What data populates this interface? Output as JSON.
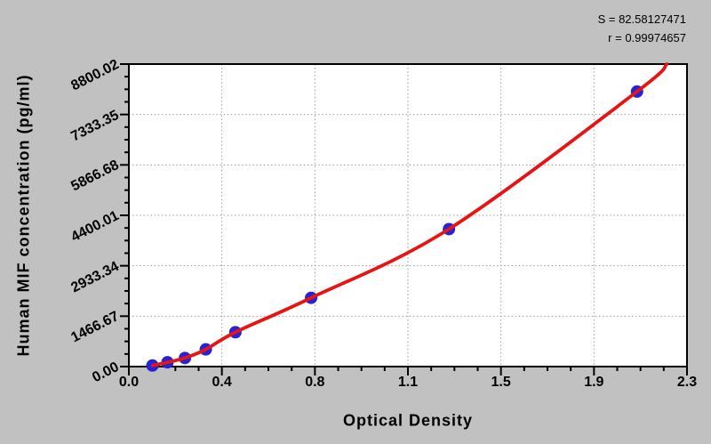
{
  "window": {
    "background_color": "#c1c1c1",
    "plot_background_color": "#ffffff"
  },
  "chart_data": {
    "type": "scatter",
    "title": "",
    "xlabel": "Optical Density",
    "ylabel": "Human MIF concentration (pg/ml)",
    "xlim": [
      0,
      2.3
    ],
    "ylim": [
      0,
      8800.02
    ],
    "grid": {
      "style": "dotted",
      "color": "#9a9a9a",
      "on": "major"
    },
    "minor_ticks_per_interval": 3,
    "x_ticks": {
      "labels": [
        "0.0",
        "0.4",
        "0.8",
        "1.1",
        "1.5",
        "1.9",
        "2.3"
      ],
      "values": [
        0,
        0.3833,
        0.7667,
        1.15,
        1.5333,
        1.9167,
        2.3
      ]
    },
    "y_ticks": {
      "labels": [
        "0.00",
        "1466.67",
        "2933.34",
        "4400.01",
        "5866.68",
        "7333.35",
        "8800.02"
      ],
      "values": [
        0,
        1466.67,
        2933.34,
        4400.01,
        5866.68,
        7333.35,
        8800.02
      ]
    },
    "series": [
      {
        "name": "standard-points",
        "marker": "circle",
        "marker_color": "#2424d6",
        "marker_radius": 7,
        "points": [
          {
            "od": 0.097,
            "conc": 31.25
          },
          {
            "od": 0.159,
            "conc": 125
          },
          {
            "od": 0.231,
            "conc": 250
          },
          {
            "od": 0.317,
            "conc": 500
          },
          {
            "od": 0.439,
            "conc": 1000
          },
          {
            "od": 0.751,
            "conc": 2000
          },
          {
            "od": 1.319,
            "conc": 4000
          },
          {
            "od": 2.094,
            "conc": 8000
          }
        ]
      }
    ],
    "fit_curve": {
      "color": "#e81414",
      "width": 3.8,
      "end": {
        "od": 2.217,
        "conc": 8800.02
      }
    },
    "annotations": {
      "s": "S = 82.58127471",
      "r": "r = 0.99974657"
    }
  }
}
